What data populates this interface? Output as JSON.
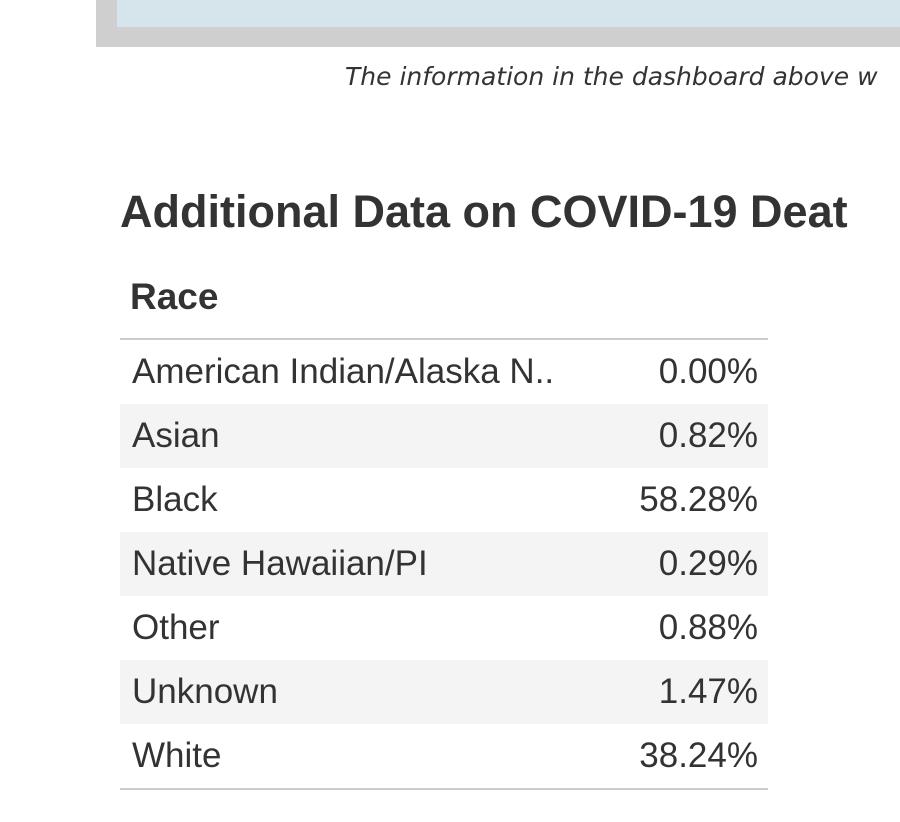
{
  "dashboard_note": "The information in the dashboard above w",
  "heading": "Additional Data on COVID-19 Deat",
  "table": {
    "title": "Race",
    "rows": [
      [
        "American Indian/Alaska N..",
        "0.00%"
      ],
      [
        "Asian",
        "0.82%"
      ],
      [
        "Black",
        "58.28%"
      ],
      [
        "Native Hawaiian/PI",
        "0.29%"
      ],
      [
        "Other",
        "0.88%"
      ],
      [
        "Unknown",
        "1.47%"
      ],
      [
        "White",
        "38.24%"
      ]
    ]
  }
}
